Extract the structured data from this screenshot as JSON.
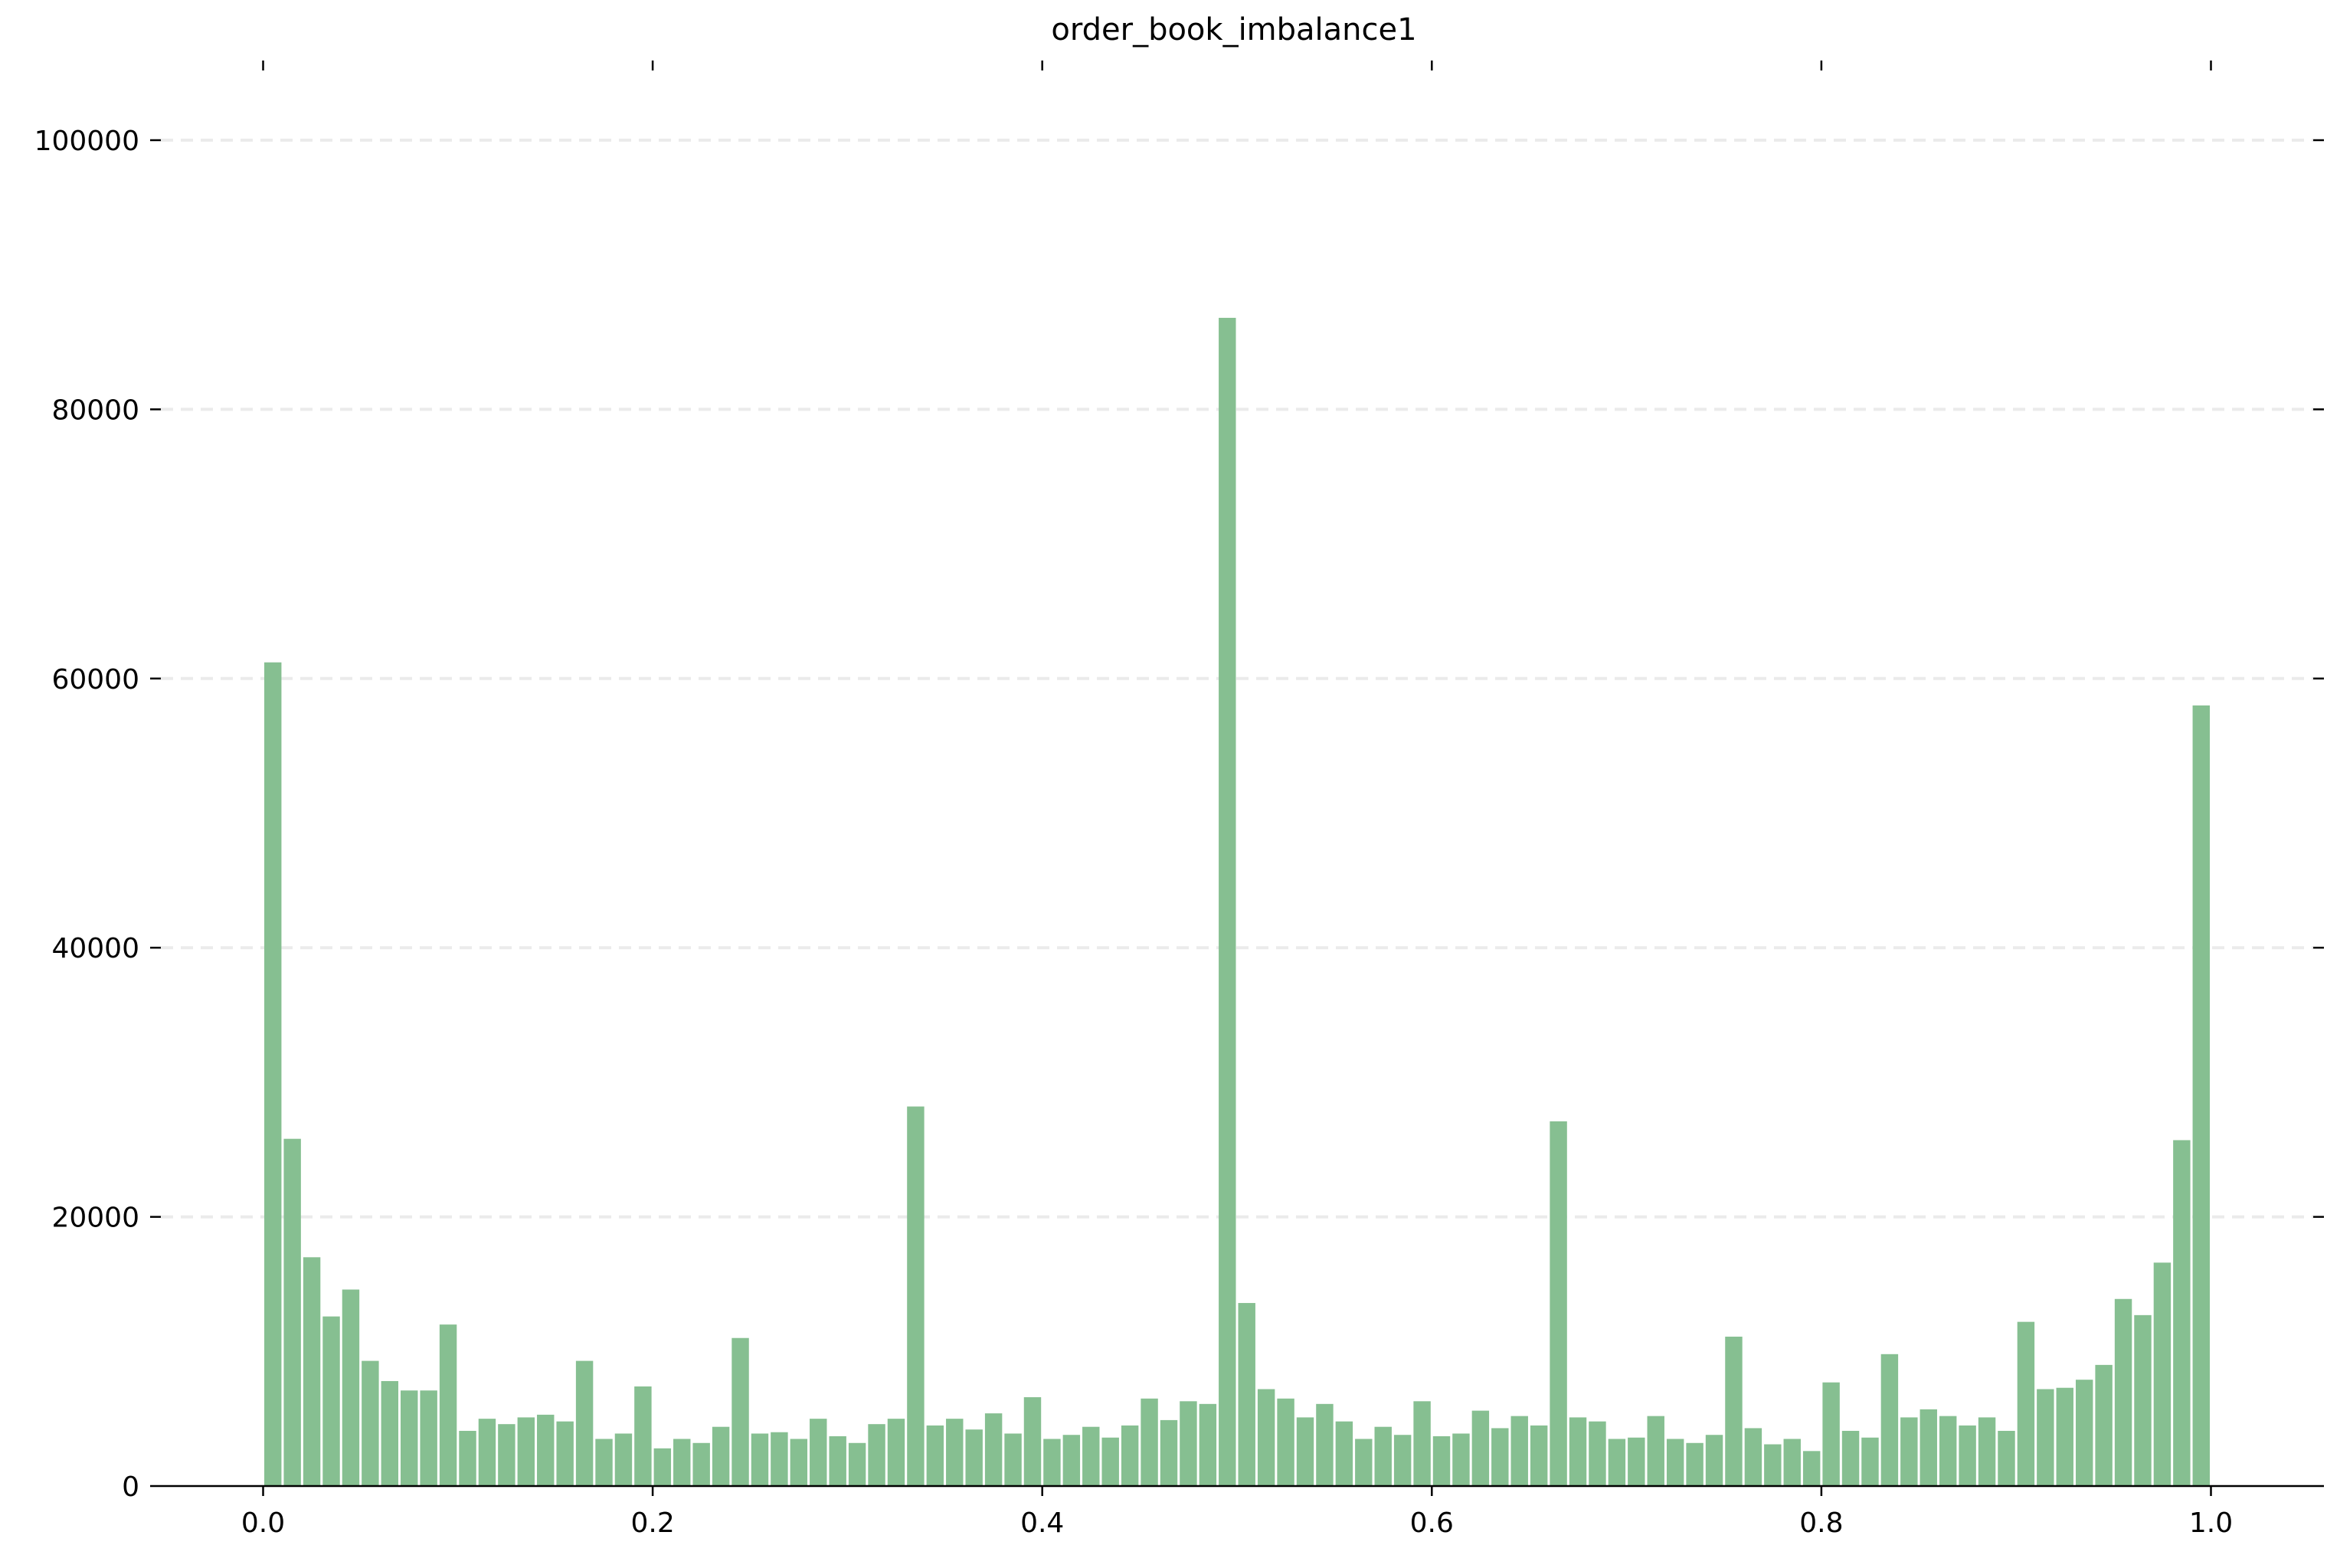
{
  "chart_data": {
    "type": "bar",
    "title": "order_book_imbalance1",
    "xlabel": "",
    "ylabel": "",
    "xlim": [
      -0.0525,
      1.0525
    ],
    "ylim": [
      0,
      100000
    ],
    "x_ticks": [
      0.0,
      0.2,
      0.4,
      0.6,
      0.8,
      1.0
    ],
    "x_tick_labels": [
      "0.0",
      "0.2",
      "0.4",
      "0.6",
      "0.8",
      "1.0"
    ],
    "y_ticks": [
      0,
      20000,
      40000,
      60000,
      80000,
      100000
    ],
    "y_tick_labels": [
      "0",
      "20000",
      "40000",
      "60000",
      "80000",
      "100000"
    ],
    "grid": "horizontal dashed",
    "color": "#86bf91",
    "bin_width": 0.01,
    "bin_start": 0.0,
    "values": [
      61200,
      25800,
      17000,
      12600,
      14600,
      9300,
      7800,
      7100,
      7100,
      12000,
      4100,
      5000,
      4600,
      5100,
      5300,
      4800,
      9300,
      3500,
      3900,
      7400,
      2800,
      3500,
      3200,
      4400,
      11000,
      3900,
      4000,
      3500,
      5000,
      3700,
      3200,
      4600,
      5000,
      28200,
      4500,
      5000,
      4200,
      5400,
      3900,
      6600,
      3500,
      3800,
      4400,
      3600,
      4500,
      6500,
      4900,
      6300,
      6100,
      86800,
      13600,
      7200,
      6500,
      5100,
      6100,
      4800,
      3500,
      4400,
      3800,
      6300,
      3700,
      3900,
      5600,
      4300,
      5200,
      4500,
      27100,
      5100,
      4800,
      3500,
      3600,
      5200,
      3500,
      3200,
      3800,
      11100,
      4300,
      3100,
      3500,
      2600,
      7700,
      4100,
      3600,
      9800,
      5100,
      5700,
      5200,
      4500,
      5100,
      4100,
      12200,
      7200,
      7300,
      7900,
      9000,
      13900,
      12700,
      16600,
      25700,
      58000
    ]
  }
}
